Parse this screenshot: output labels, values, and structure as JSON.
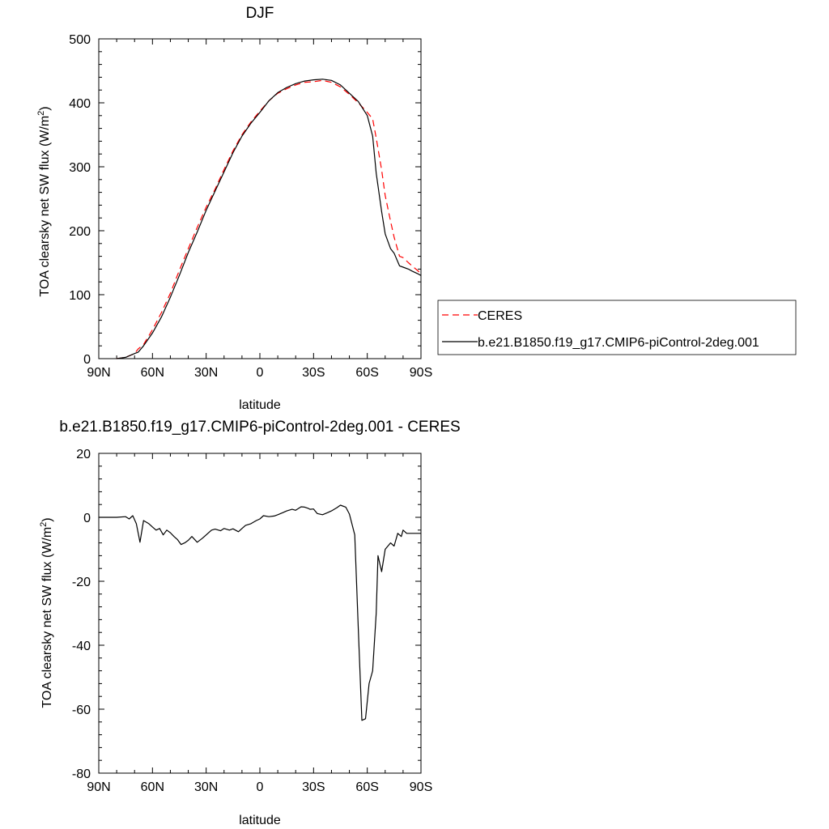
{
  "chart_data": [
    {
      "type": "line",
      "title": "DJF",
      "xlabel": "latitude",
      "ylabel": "TOA clearsky net SW flux (W/m",
      "ylabel_sup": "2",
      "ylabel_end": ")",
      "xlim": [
        90,
        -90
      ],
      "ylim": [
        0,
        500
      ],
      "xticks": [
        {
          "value": 90,
          "label": "90N"
        },
        {
          "value": 60,
          "label": "60N"
        },
        {
          "value": 30,
          "label": "30N"
        },
        {
          "value": 0,
          "label": "0"
        },
        {
          "value": -30,
          "label": "30S"
        },
        {
          "value": -60,
          "label": "60S"
        },
        {
          "value": -90,
          "label": "90S"
        }
      ],
      "yticks": [
        {
          "value": 0,
          "label": "0"
        },
        {
          "value": 100,
          "label": "100"
        },
        {
          "value": 200,
          "label": "200"
        },
        {
          "value": 300,
          "label": "300"
        },
        {
          "value": 400,
          "label": "400"
        },
        {
          "value": 500,
          "label": "500"
        }
      ],
      "legend": {
        "placement": "right"
      },
      "series": [
        {
          "name": "CERES",
          "color": "#ff0000",
          "dash": true,
          "x": [
            80,
            75,
            70,
            68,
            65,
            60,
            55,
            50,
            45,
            40,
            35,
            30,
            25,
            20,
            15,
            10,
            5,
            0,
            -5,
            -10,
            -15,
            -20,
            -25,
            -30,
            -35,
            -40,
            -45,
            -50,
            -55,
            -60,
            -63,
            -65,
            -68,
            -70,
            -73,
            -75,
            -78,
            -80,
            -83,
            -85,
            -88,
            -90
          ],
          "y": [
            0,
            2,
            8,
            15,
            22,
            45,
            72,
            102,
            138,
            172,
            205,
            237,
            265,
            296,
            325,
            350,
            370,
            387,
            403,
            415,
            422,
            428,
            432,
            433,
            435,
            432,
            425,
            413,
            400,
            385,
            375,
            345,
            295,
            255,
            215,
            190,
            160,
            158,
            150,
            145,
            138,
            133
          ]
        },
        {
          "name": "b.e21.B1850.f19_g17.CMIP6-piControl-2deg.001",
          "color": "#000000",
          "dash": false,
          "x": [
            80,
            75,
            70,
            68,
            65,
            60,
            55,
            50,
            45,
            40,
            35,
            30,
            25,
            20,
            15,
            10,
            5,
            0,
            -5,
            -10,
            -15,
            -20,
            -25,
            -30,
            -35,
            -40,
            -45,
            -50,
            -55,
            -60,
            -63,
            -65,
            -68,
            -70,
            -73,
            -75,
            -78,
            -80,
            -83,
            -85,
            -88,
            -90
          ],
          "y": [
            0,
            2,
            8,
            10,
            20,
            40,
            65,
            96,
            130,
            166,
            198,
            232,
            262,
            292,
            322,
            348,
            368,
            385,
            403,
            416,
            424,
            430,
            434,
            436,
            437,
            435,
            428,
            415,
            402,
            380,
            348,
            290,
            230,
            195,
            172,
            165,
            145,
            143,
            140,
            137,
            133,
            130
          ]
        }
      ]
    },
    {
      "type": "line",
      "title": "b.e21.B1850.f19_g17.CMIP6-piControl-2deg.001 - CERES",
      "xlabel": "latitude",
      "ylabel": "TOA clearsky net SW flux (W/m",
      "ylabel_sup": "2",
      "ylabel_end": ")",
      "xlim": [
        90,
        -90
      ],
      "ylim": [
        -80,
        20
      ],
      "xticks": [
        {
          "value": 90,
          "label": "90N"
        },
        {
          "value": 60,
          "label": "60N"
        },
        {
          "value": 30,
          "label": "30N"
        },
        {
          "value": 0,
          "label": "0"
        },
        {
          "value": -30,
          "label": "30S"
        },
        {
          "value": -60,
          "label": "60S"
        },
        {
          "value": -90,
          "label": "90S"
        }
      ],
      "yticks": [
        {
          "value": -80,
          "label": "-80"
        },
        {
          "value": -60,
          "label": "-60"
        },
        {
          "value": -40,
          "label": "-40"
        },
        {
          "value": -20,
          "label": "-20"
        },
        {
          "value": 0,
          "label": "0"
        },
        {
          "value": 20,
          "label": "20"
        }
      ],
      "series": [
        {
          "color": "#000000",
          "dash": false,
          "x": [
            90,
            85,
            80,
            75,
            73,
            71,
            69,
            67,
            65,
            62,
            60,
            58,
            56,
            54,
            52,
            50,
            48,
            46,
            44,
            42,
            40,
            38,
            35,
            32,
            30,
            27,
            25,
            22,
            20,
            17,
            15,
            12,
            10,
            8,
            5,
            2,
            0,
            -2,
            -5,
            -8,
            -10,
            -13,
            -15,
            -18,
            -20,
            -23,
            -25,
            -27,
            -28,
            -30,
            -32,
            -35,
            -38,
            -40,
            -43,
            -45,
            -48,
            -50,
            -53,
            -55,
            -57,
            -59,
            -61,
            -63,
            -65,
            -66,
            -68,
            -70,
            -73,
            -75,
            -77,
            -79,
            -80,
            -82,
            -83,
            -85,
            -87,
            -89,
            -90
          ],
          "y": [
            0,
            0,
            0,
            0.2,
            -0.5,
            0.5,
            -2,
            -7.8,
            -1,
            -2,
            -3,
            -4,
            -3.5,
            -5.5,
            -4,
            -4.8,
            -6,
            -7,
            -8.5,
            -8,
            -7.2,
            -6,
            -7.8,
            -6.5,
            -5.5,
            -4,
            -3.7,
            -4.2,
            -3.5,
            -4,
            -3.6,
            -4.5,
            -3.5,
            -2.5,
            -2,
            -1,
            -0.5,
            0.5,
            0.2,
            0.4,
            0.8,
            1.5,
            2,
            2.5,
            2.2,
            3.3,
            3.2,
            2.8,
            2.5,
            2.6,
            1.2,
            0.8,
            1.5,
            2,
            3,
            3.8,
            3.2,
            1,
            -5.5,
            -35,
            -63.5,
            -63,
            -52,
            -48,
            -30,
            -12,
            -17,
            -10,
            -8,
            -9,
            -5,
            -6,
            -4,
            -5,
            -5,
            -5,
            -5,
            -5,
            -5
          ]
        }
      ]
    }
  ]
}
